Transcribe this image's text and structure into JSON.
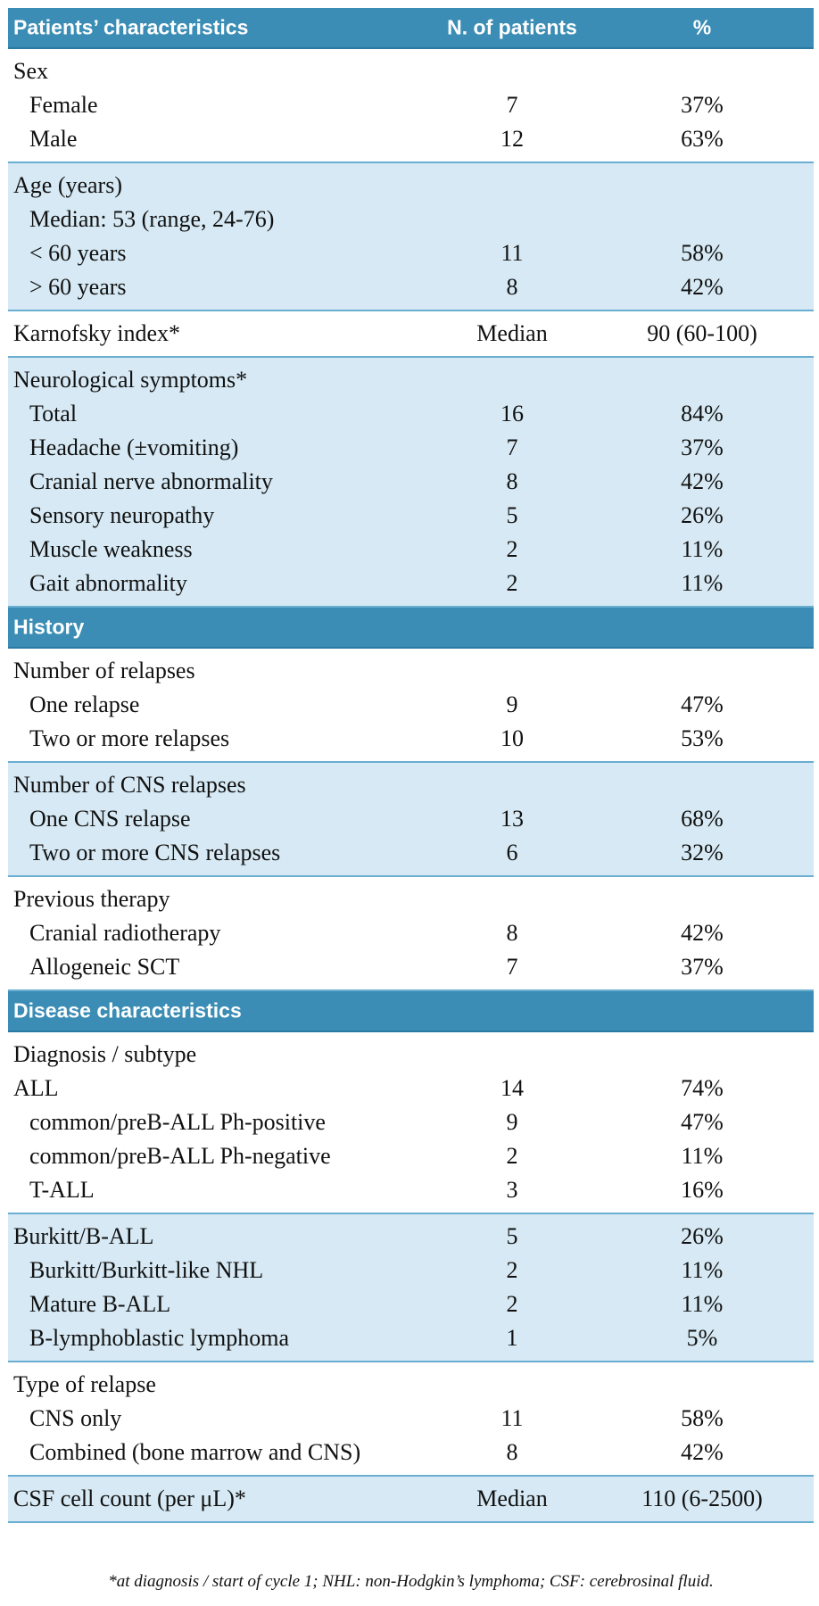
{
  "header": [
    "Patients’ characteristics",
    "N. of patients",
    "%"
  ],
  "sections": [
    {
      "groups": [
        {
          "shade": false,
          "rows": [
            {
              "label": "Sex"
            },
            {
              "label": "Female",
              "n": "7",
              "pct": "37%",
              "indent": true
            },
            {
              "label": "Male",
              "n": "12",
              "pct": "63%",
              "indent": true
            }
          ]
        },
        {
          "shade": true,
          "rows": [
            {
              "label": "Age (years)"
            },
            {
              "label": "Median: 53 (range, 24-76)",
              "indent": true
            },
            {
              "label": "< 60 years",
              "n": "11",
              "pct": "58%",
              "indent": true
            },
            {
              "label": "> 60 years",
              "n": "8",
              "pct": "42%",
              "indent": true
            }
          ]
        },
        {
          "shade": false,
          "rows": [
            {
              "label": "Karnofsky index*",
              "n": "Median",
              "pct": "90 (60-100)"
            }
          ]
        },
        {
          "shade": true,
          "rows": [
            {
              "label": "Neurological symptoms*"
            },
            {
              "label": "Total",
              "n": "16",
              "pct": "84%",
              "indent": true
            },
            {
              "label": "Headache (±vomiting)",
              "n": "7",
              "pct": "37%",
              "indent": true
            },
            {
              "label": "Cranial nerve abnormality",
              "n": "8",
              "pct": "42%",
              "indent": true
            },
            {
              "label": "Sensory neuropathy",
              "n": "5",
              "pct": "26%",
              "indent": true
            },
            {
              "label": "Muscle weakness",
              "n": "2",
              "pct": "11%",
              "indent": true
            },
            {
              "label": "Gait abnormality",
              "n": "2",
              "pct": "11%",
              "indent": true
            }
          ]
        }
      ]
    },
    {
      "title": "History",
      "groups": [
        {
          "shade": false,
          "rows": [
            {
              "label": "Number of relapses"
            },
            {
              "label": "One relapse",
              "n": "9",
              "pct": "47%",
              "indent": true
            },
            {
              "label": "Two or more relapses",
              "n": "10",
              "pct": "53%",
              "indent": true
            }
          ]
        },
        {
          "shade": true,
          "rows": [
            {
              "label": "Number of CNS relapses"
            },
            {
              "label": "One CNS relapse",
              "n": "13",
              "pct": "68%",
              "indent": true
            },
            {
              "label": "Two or more CNS relapses",
              "n": "6",
              "pct": "32%",
              "indent": true
            }
          ]
        },
        {
          "shade": false,
          "rows": [
            {
              "label": "Previous therapy"
            },
            {
              "label": "Cranial radiotherapy",
              "n": "8",
              "pct": "42%",
              "indent": true
            },
            {
              "label": "Allogeneic SCT",
              "n": "7",
              "pct": "37%",
              "indent": true
            }
          ]
        }
      ]
    },
    {
      "title": "Disease characteristics",
      "groups": [
        {
          "shade": false,
          "rows": [
            {
              "label": "Diagnosis / subtype"
            },
            {
              "label": "ALL",
              "n": "14",
              "pct": "74%"
            },
            {
              "label": "common/preB-ALL Ph-positive",
              "n": "9",
              "pct": "47%",
              "indent": true
            },
            {
              "label": "common/preB-ALL Ph-negative",
              "n": "2",
              "pct": "11%",
              "indent": true
            },
            {
              "label": "T-ALL",
              "n": "3",
              "pct": "16%",
              "indent": true
            }
          ]
        },
        {
          "shade": true,
          "rows": [
            {
              "label": "Burkitt/B-ALL",
              "n": "5",
              "pct": "26%"
            },
            {
              "label": "Burkitt/Burkitt-like NHL",
              "n": "2",
              "pct": "11%",
              "indent": true
            },
            {
              "label": "Mature B-ALL",
              "n": "2",
              "pct": "11%",
              "indent": true
            },
            {
              "label": "B-lymphoblastic lymphoma",
              "n": "1",
              "pct": "5%",
              "indent": true
            }
          ]
        },
        {
          "shade": false,
          "rows": [
            {
              "label": "Type of relapse"
            },
            {
              "label": "CNS only",
              "n": "11",
              "pct": "58%",
              "indent": true
            },
            {
              "label": "Combined (bone marrow and CNS)",
              "n": "8",
              "pct": "42%",
              "indent": true
            }
          ]
        },
        {
          "shade": true,
          "rows": [
            {
              "label": "CSF cell count (per μL)*",
              "n": "Median",
              "pct": "110 (6-2500)"
            }
          ]
        }
      ]
    }
  ],
  "footnote": "*at diagnosis / start of cycle 1; NHL: non-Hodgkin’s lymphoma; CSF: cerebrosinal fluid."
}
